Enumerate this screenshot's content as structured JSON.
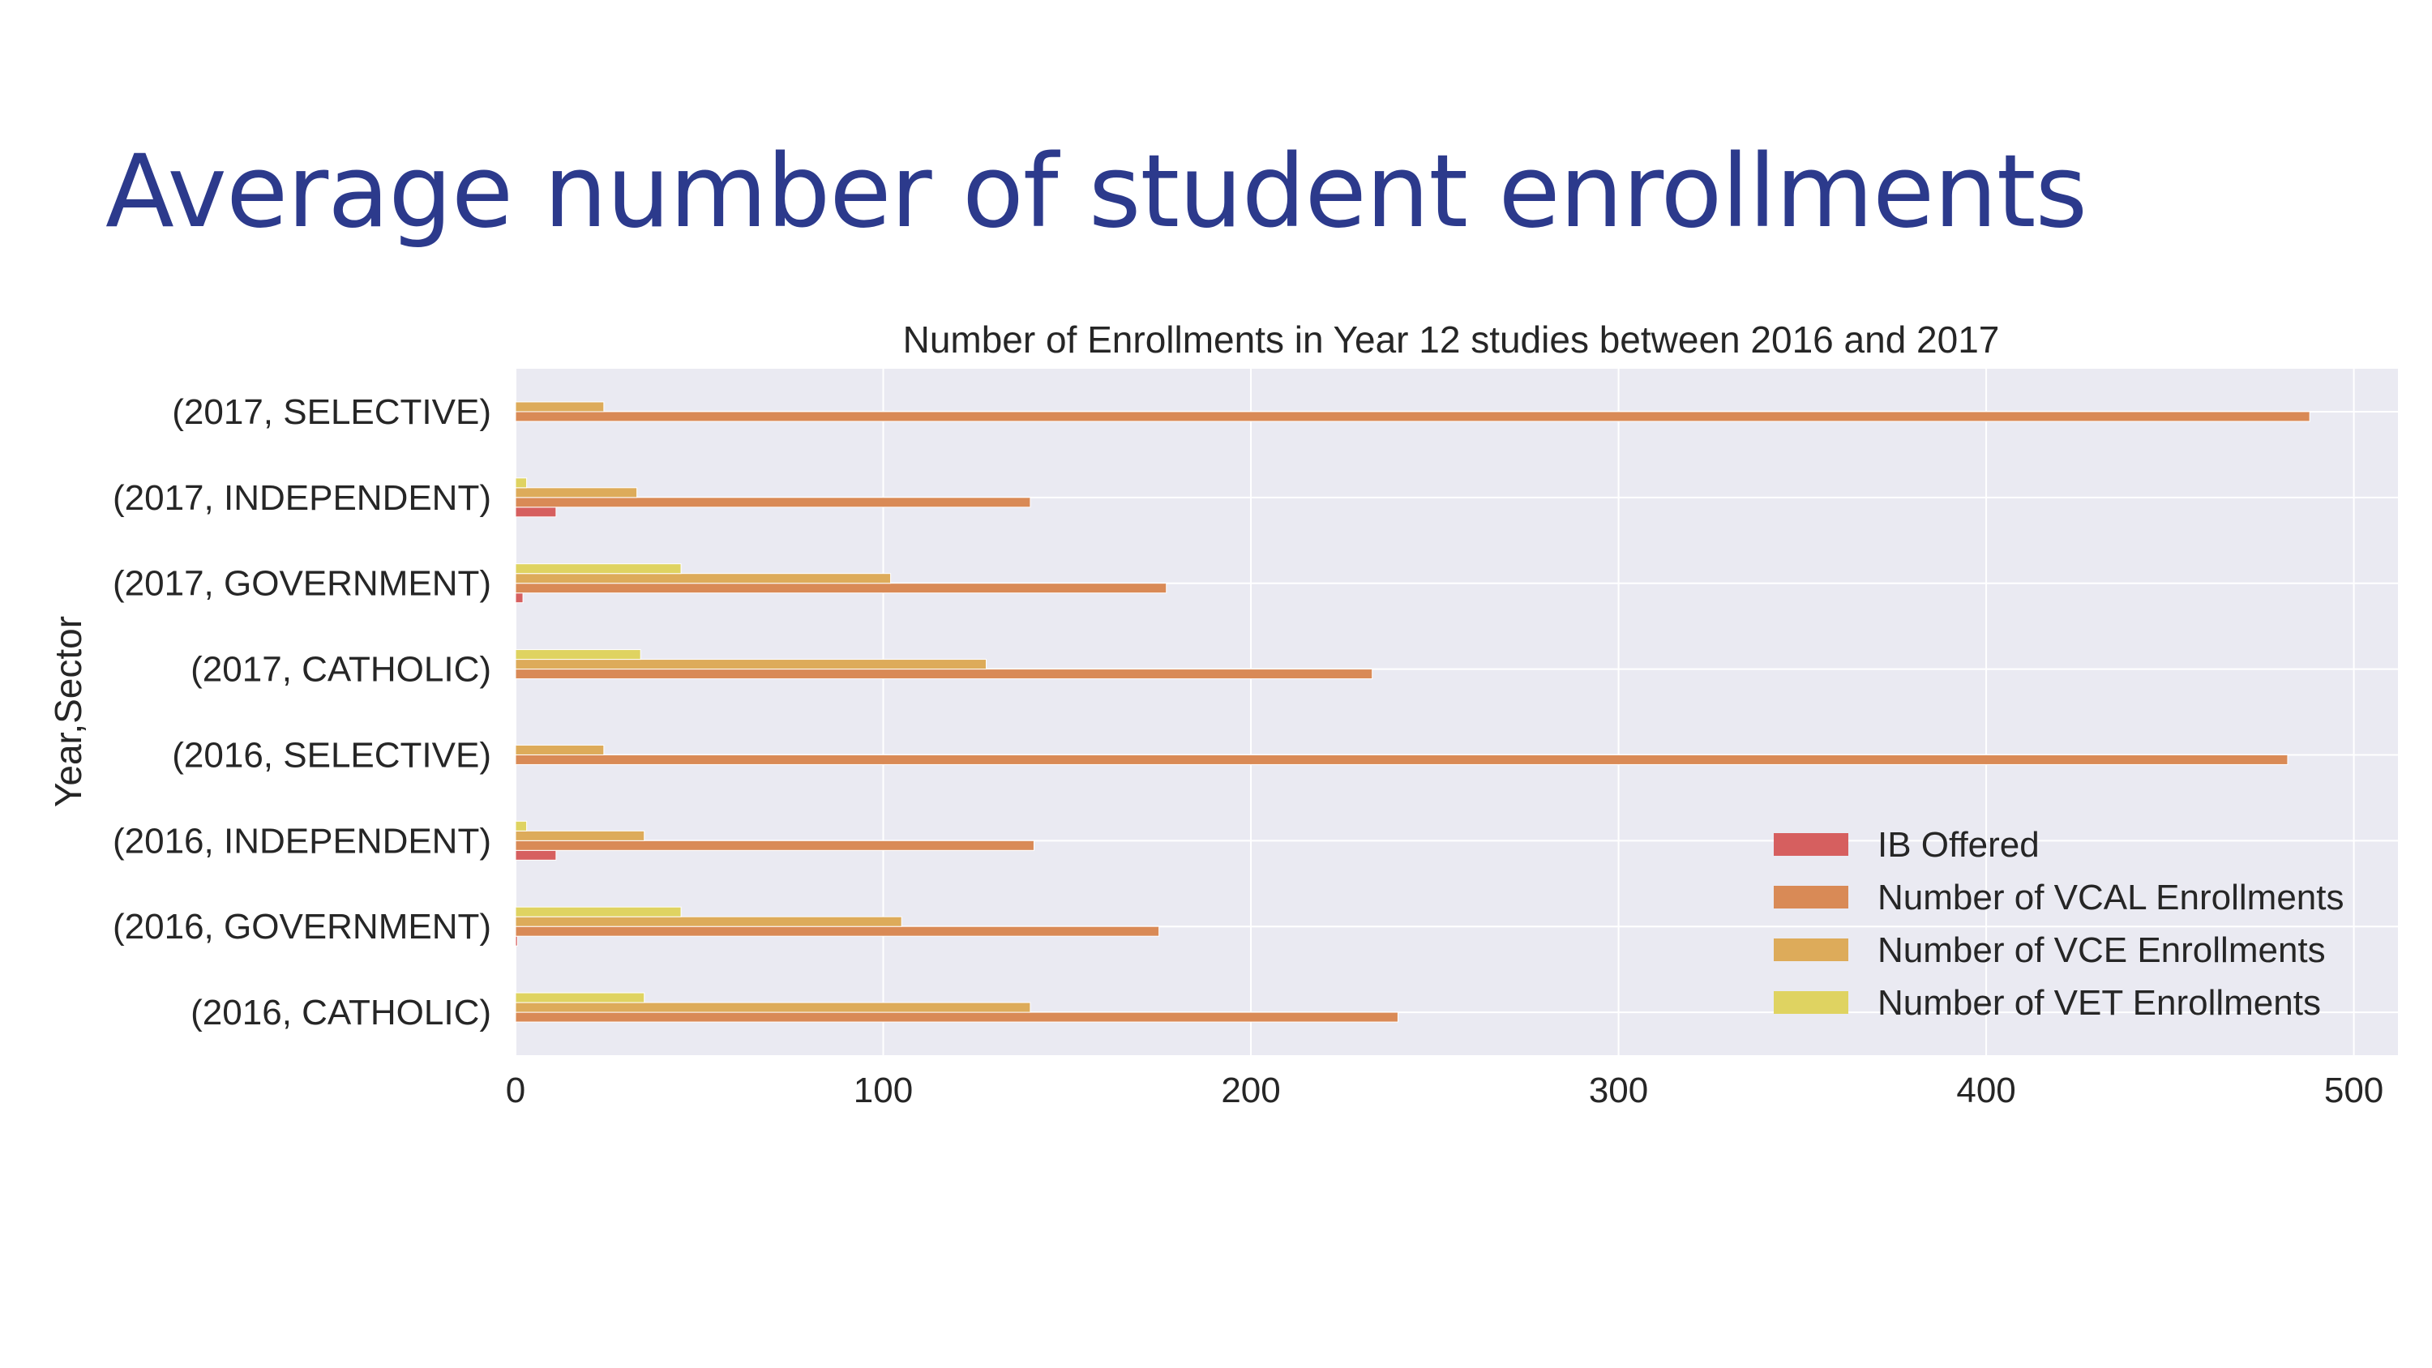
{
  "slide": {
    "title": "Average number of student enrollments"
  },
  "chart_data": {
    "type": "bar",
    "orientation": "horizontal",
    "title": "Number of Enrollments in Year 12 studies between 2016 and 2017",
    "xlabel": "",
    "ylabel": "Year,Sector",
    "xlim": [
      0,
      512
    ],
    "xticks": [
      0,
      100,
      200,
      300,
      400,
      500
    ],
    "grid": true,
    "legend_position": "bottom-right",
    "categories": [
      "(2016, CATHOLIC)",
      "(2016, GOVERNMENT)",
      "(2016, INDEPENDENT)",
      "(2016, SELECTIVE)",
      "(2017, CATHOLIC)",
      "(2017, GOVERNMENT)",
      "(2017, INDEPENDENT)",
      "(2017, SELECTIVE)"
    ],
    "series": [
      {
        "name": "IB Offered",
        "color": "#d65f5f",
        "values": [
          0,
          0.5,
          11,
          0,
          0,
          2,
          11,
          0
        ]
      },
      {
        "name": "Number of VCAL Enrollments",
        "color": "#d98a56",
        "values": [
          240,
          175,
          141,
          482,
          233,
          177,
          140,
          488
        ]
      },
      {
        "name": "Number of VCE Enrollments",
        "color": "#ddab5a",
        "values": [
          140,
          105,
          35,
          24,
          128,
          102,
          33,
          24
        ]
      },
      {
        "name": "Number of VET Enrollments",
        "color": "#dfd361",
        "values": [
          35,
          45,
          3,
          0,
          34,
          45,
          3,
          0
        ]
      }
    ]
  }
}
